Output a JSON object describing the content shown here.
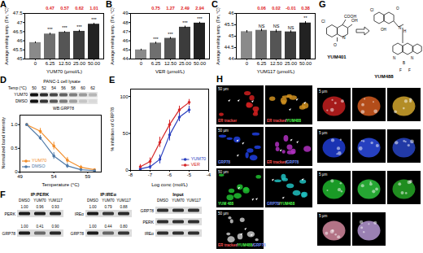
{
  "chart_data": [
    {
      "panel": "A",
      "type": "bar",
      "xlabel": "YUM70 (µmol/L)",
      "ylabel": "Average melting temp. (Tm, °C)",
      "categories": [
        "0",
        "6.25",
        "12.50",
        "25.00",
        "50.00"
      ],
      "values": [
        45.9,
        46.37,
        46.47,
        46.52,
        46.91
      ],
      "errors": [
        0.04,
        0.05,
        0.04,
        0.06,
        0.05
      ],
      "deltas": [
        null,
        0.47,
        0.57,
        0.62,
        1.01
      ],
      "significance": [
        null,
        "***",
        "***",
        "***",
        "***"
      ],
      "colors": [
        "#8a8a8a",
        "#6f6f6f",
        "#555555",
        "#3c3c3c",
        "#222222"
      ],
      "ylim": [
        45,
        47.5
      ],
      "yticks": [
        45,
        45.5,
        46,
        46.5,
        47,
        47.5
      ]
    },
    {
      "panel": "B",
      "type": "bar",
      "xlabel": "VER (µmol/L)",
      "ylabel": "Average melting temp. (Tm, °C)",
      "categories": [
        "0",
        "6.25",
        "12.50",
        "25.00",
        "50.00"
      ],
      "values": [
        45.0,
        45.75,
        46.27,
        47.49,
        47.94
      ],
      "errors": [
        0.08,
        0.1,
        0.1,
        0.12,
        0.1
      ],
      "deltas": [
        null,
        0.75,
        1.27,
        2.49,
        2.94
      ],
      "significance": [
        null,
        "***",
        "***",
        "***",
        "***"
      ],
      "colors": [
        "#8a8a8a",
        "#6f6f6f",
        "#555555",
        "#3c3c3c",
        "#222222"
      ],
      "ylim": [
        44,
        49
      ],
      "yticks": [
        44,
        45,
        46,
        47,
        48,
        49
      ]
    },
    {
      "panel": "C",
      "type": "bar",
      "xlabel": "YUM117 (µmol/L)",
      "ylabel": "Average melting temp. (Tm, °C)",
      "categories": [
        "0",
        "6.25",
        "12.50",
        "25.00",
        "50.00"
      ],
      "values": [
        45.2,
        45.26,
        45.22,
        45.19,
        45.58
      ],
      "errors": [
        0.05,
        0.05,
        0.06,
        0.05,
        0.06
      ],
      "deltas": [
        null,
        0.06,
        0.02,
        -0.01,
        0.38
      ],
      "significance": [
        null,
        "NS",
        "NS",
        "NS",
        "**"
      ],
      "colors": [
        "#8a8a8a",
        "#6f6f6f",
        "#555555",
        "#3c3c3c",
        "#222222"
      ],
      "ylim": [
        44,
        46
      ],
      "yticks": [
        44,
        44.5,
        45,
        45.5,
        46
      ]
    },
    {
      "panel": "D",
      "type": "line",
      "xlabel": "Temperature (°C)",
      "ylabel": "Normalized band intensity",
      "x": [
        50,
        52,
        54,
        56,
        58,
        60
      ],
      "series": [
        {
          "name": "YUM70",
          "color": "#f28e2b",
          "values": [
            1,
            0.86,
            0.55,
            0.25,
            0.1,
            0.05
          ],
          "errors": [
            0.02,
            0.06,
            0.08,
            0.06,
            0.04,
            0.02
          ]
        },
        {
          "name": "DMSO",
          "color": "#4e79a7",
          "values": [
            1,
            0.72,
            0.34,
            0.13,
            0.05,
            0.03
          ],
          "errors": [
            0.02,
            0.05,
            0.07,
            0.05,
            0.03,
            0.02
          ]
        }
      ],
      "xlim": [
        49,
        61
      ],
      "xticks": [
        49,
        54,
        59
      ],
      "ylim": [
        0,
        1.2
      ],
      "yticks": [
        0,
        0.5,
        {
          "value": 1,
          "label": "1.0"
        }
      ],
      "marker": "circle",
      "legend": "bottom-left"
    },
    {
      "panel": "E",
      "type": "line",
      "xlabel": "Log conc (mol/L)",
      "ylabel": "% inhibition of GRP78",
      "x": [
        -7.5,
        -7,
        -6.5,
        -6,
        -5.5,
        -5
      ],
      "series": [
        {
          "name": "YUM70",
          "color": "#2a3fbf",
          "values": [
            2,
            5,
            15,
            48,
            72,
            82
          ],
          "errors": [
            3,
            4,
            6,
            8,
            6,
            5
          ]
        },
        {
          "name": "VER",
          "color": "#d62728",
          "values": [
            5,
            12,
            38,
            62,
            82,
            92
          ],
          "errors": [
            3,
            5,
            7,
            6,
            5,
            4
          ]
        }
      ],
      "xlim": [
        -8,
        -4
      ],
      "xticks": [
        -8,
        -7,
        -6,
        -5,
        -4
      ],
      "ylim": [
        0,
        110
      ],
      "yticks": [
        0,
        50,
        100
      ],
      "marker": "circle",
      "legend": "bottom-right"
    }
  ],
  "D_blot": {
    "title": "PANC-1 cell lysate",
    "temp_label": "Temp (°C)",
    "temps": [
      "50",
      "52",
      "54",
      "56",
      "58",
      "60",
      "62"
    ],
    "rows": [
      "YUM70",
      "DMSO"
    ],
    "antibody": "WB:GRP78"
  },
  "F": {
    "panel": "F",
    "blots": [
      {
        "title": "IP:PERK",
        "lanes": [
          "DMSO",
          "YUM70",
          "YUM117"
        ],
        "rows": [
          {
            "label": "PERK",
            "values": [
              "1.00",
              "0.96",
              "0.93"
            ]
          },
          {
            "label": "GRP78",
            "values": [
              "1.00",
              "0.41",
              "0.90"
            ]
          }
        ]
      },
      {
        "title": "IP:IREα",
        "lanes": [
          "DMSO",
          "YUM70",
          "YUM117"
        ],
        "rows": [
          {
            "label": "IREα",
            "values": [
              "1.00",
              "0.79",
              "0.88"
            ]
          },
          {
            "label": "GRP78",
            "values": [
              "1.00",
              "0.44",
              "0.80"
            ]
          }
        ]
      },
      {
        "title": "Input",
        "lanes": [
          "DMSO",
          "YUM70",
          "YUM117"
        ],
        "rows": [
          {
            "label": "GRP78"
          },
          {
            "label": "PERK"
          },
          {
            "label": "IREα"
          }
        ]
      }
    ]
  },
  "G": {
    "panel": "G",
    "from": "YUM401",
    "to": "YUM488",
    "from_atoms": [
      "Cl",
      "COOH",
      "N",
      "OH",
      "O"
    ],
    "to_atoms": [
      "Cl",
      "OH",
      "O",
      "N",
      "H",
      "N",
      "B",
      "N",
      "F",
      "F"
    ]
  },
  "H": {
    "panel": "H",
    "scale_bar_large": "50 µm",
    "scale_bar_small": "5 µm",
    "separator": "/",
    "rows": [
      {
        "labels": [
          [
            {
              "text": "ER tracker",
              "color": "#ff5050"
            }
          ],
          [
            {
              "text": "ER tracker",
              "color": "#ff5050"
            },
            {
              "text": "YUM488",
              "color": "#50ff50"
            }
          ]
        ],
        "colors": [
          "#d02020",
          "#d09020"
        ],
        "detail_colors": [
          "#d02020",
          "#e06020",
          "#e0b030"
        ]
      },
      {
        "labels": [
          [
            {
              "text": "GRP78",
              "color": "#7090ff"
            }
          ],
          [
            {
              "text": "ER tracker",
              "color": "#ff5050"
            },
            {
              "text": "GRP78",
              "color": "#7090ff"
            }
          ]
        ],
        "colors": [
          "#2040e0",
          "#b030c0"
        ],
        "detail_colors": [
          "#2040e0",
          "#3050f0",
          "#2a48d0"
        ]
      },
      {
        "labels": [
          [
            {
              "text": "YUM 488",
              "color": "#50ff50"
            }
          ],
          [
            {
              "text": "GRP78",
              "color": "#7090ff"
            },
            {
              "text": "YUM488",
              "color": "#50ff50"
            }
          ]
        ],
        "colors": [
          "#20c030",
          "#20c0c0"
        ],
        "detail_colors": [
          "#20c030",
          "#30d040",
          "#28b028"
        ]
      },
      {
        "labels": [
          [
            {
              "text": "ER tracker",
              "color": "#ff5050"
            },
            {
              "text": "YUM488",
              "color": "#50ff50"
            },
            {
              "text": "GRP78",
              "color": "#7090ff"
            }
          ]
        ],
        "colors": [
          "#c8c8c8"
        ],
        "detail_colors": [
          "#e090a8",
          "#c0a0e0"
        ]
      }
    ]
  }
}
